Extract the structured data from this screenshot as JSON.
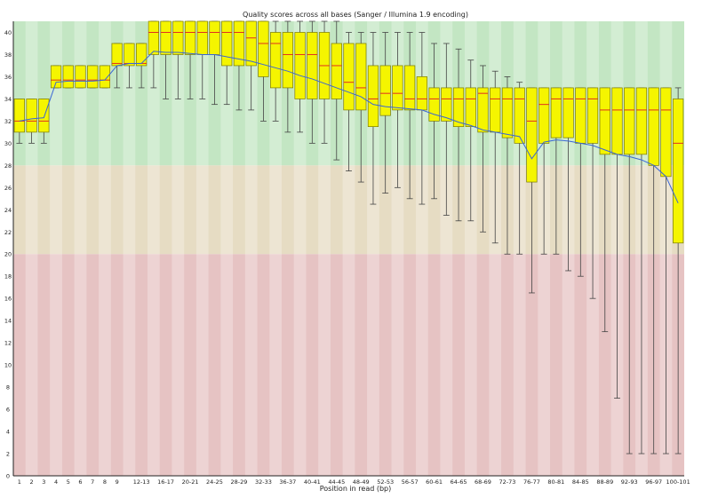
{
  "chart_data": {
    "type": "box",
    "title": "Quality scores across all bases (Sanger / Illumina 1.9 encoding)",
    "xlabel": "Position in read (bp)",
    "ylabel": "",
    "ylim": [
      0,
      41
    ],
    "y_ticks": [
      0,
      2,
      4,
      6,
      8,
      10,
      12,
      14,
      16,
      18,
      20,
      22,
      24,
      26,
      28,
      30,
      32,
      34,
      36,
      38,
      40
    ],
    "grid": false,
    "legend": "none",
    "bands": [
      {
        "from": 28,
        "to": 41,
        "color": "#c3e6c3"
      },
      {
        "from": 20,
        "to": 28,
        "color": "#e6dcc3"
      },
      {
        "from": 0,
        "to": 20,
        "color": "#e6c3c3"
      }
    ],
    "colors": {
      "box_fill": "#f5f500",
      "box_stroke": "#7a7a00",
      "median": "#e03020",
      "mean_line": "#3a66d6",
      "whisker": "#444444"
    },
    "categories": [
      "1",
      "2",
      "3",
      "4",
      "5",
      "6",
      "7",
      "8",
      "9",
      "10-11",
      "12-13",
      "14-15",
      "16-17",
      "18-19",
      "20-21",
      "22-23",
      "24-25",
      "26-27",
      "28-29",
      "30-31",
      "32-33",
      "34-35",
      "36-37",
      "38-39",
      "40-41",
      "42-43",
      "44-45",
      "46-47",
      "48-49",
      "50-51",
      "52-53",
      "54-55",
      "56-57",
      "58-59",
      "60-61",
      "62-63",
      "64-65",
      "66-67",
      "68-69",
      "70-71",
      "72-73",
      "74-75",
      "76-77",
      "78-79",
      "80-81",
      "82-83",
      "84-85",
      "86-87",
      "88-89",
      "90-91",
      "92-93",
      "94-95",
      "96-97",
      "98-99",
      "100-101"
    ],
    "x_tick_labels": [
      "1",
      "2",
      "3",
      "4",
      "5",
      "6",
      "7",
      "8",
      "9",
      "",
      "12-13",
      "",
      "16-17",
      "",
      "20-21",
      "",
      "24-25",
      "",
      "28-29",
      "",
      "32-33",
      "",
      "36-37",
      "",
      "40-41",
      "",
      "44-45",
      "",
      "48-49",
      "",
      "52-53",
      "",
      "56-57",
      "",
      "60-61",
      "",
      "64-65",
      "",
      "68-69",
      "",
      "72-73",
      "",
      "76-77",
      "",
      "80-81",
      "",
      "84-85",
      "",
      "88-89",
      "",
      "92-93",
      "",
      "96-97",
      "",
      "100-101"
    ],
    "boxes": [
      {
        "low": 30,
        "q1": 31,
        "median": 32,
        "q3": 34,
        "high": 34
      },
      {
        "low": 30,
        "q1": 31,
        "median": 32,
        "q3": 34,
        "high": 34
      },
      {
        "low": 30,
        "q1": 31,
        "median": 32,
        "q3": 34,
        "high": 34
      },
      {
        "low": 35,
        "q1": 35,
        "median": 35.7,
        "q3": 37,
        "high": 37
      },
      {
        "low": 35,
        "q1": 35,
        "median": 35.7,
        "q3": 37,
        "high": 37
      },
      {
        "low": 35,
        "q1": 35,
        "median": 35.7,
        "q3": 37,
        "high": 37
      },
      {
        "low": 35,
        "q1": 35,
        "median": 35.7,
        "q3": 37,
        "high": 37
      },
      {
        "low": 35,
        "q1": 35,
        "median": 35.7,
        "q3": 37,
        "high": 37
      },
      {
        "low": 35,
        "q1": 37,
        "median": 37.2,
        "q3": 39,
        "high": 39
      },
      {
        "low": 35,
        "q1": 37,
        "median": 37.2,
        "q3": 39,
        "high": 39
      },
      {
        "low": 35,
        "q1": 37,
        "median": 37.2,
        "q3": 39,
        "high": 39
      },
      {
        "low": 35,
        "q1": 38,
        "median": 40,
        "q3": 41,
        "high": 41
      },
      {
        "low": 34,
        "q1": 38,
        "median": 40,
        "q3": 41,
        "high": 41
      },
      {
        "low": 34,
        "q1": 38,
        "median": 40,
        "q3": 41,
        "high": 41
      },
      {
        "low": 34,
        "q1": 38,
        "median": 40,
        "q3": 41,
        "high": 41
      },
      {
        "low": 34,
        "q1": 38,
        "median": 40,
        "q3": 41,
        "high": 41
      },
      {
        "low": 33.5,
        "q1": 38,
        "median": 40,
        "q3": 41,
        "high": 41
      },
      {
        "low": 33.5,
        "q1": 37,
        "median": 40,
        "q3": 41,
        "high": 41
      },
      {
        "low": 33,
        "q1": 37,
        "median": 40,
        "q3": 41,
        "high": 41
      },
      {
        "low": 33,
        "q1": 37,
        "median": 39.5,
        "q3": 41,
        "high": 41
      },
      {
        "low": 32,
        "q1": 36,
        "median": 39,
        "q3": 41,
        "high": 41
      },
      {
        "low": 32,
        "q1": 35,
        "median": 39,
        "q3": 40,
        "high": 41
      },
      {
        "low": 31,
        "q1": 35,
        "median": 38,
        "q3": 40,
        "high": 41
      },
      {
        "low": 31,
        "q1": 34,
        "median": 38,
        "q3": 40,
        "high": 41
      },
      {
        "low": 30,
        "q1": 34,
        "median": 38,
        "q3": 40,
        "high": 41
      },
      {
        "low": 30,
        "q1": 34,
        "median": 37,
        "q3": 40,
        "high": 41
      },
      {
        "low": 28.5,
        "q1": 34,
        "median": 37,
        "q3": 39,
        "high": 41
      },
      {
        "low": 27.5,
        "q1": 33,
        "median": 35.5,
        "q3": 39,
        "high": 40
      },
      {
        "low": 26.5,
        "q1": 33,
        "median": 35,
        "q3": 39,
        "high": 40
      },
      {
        "low": 24.5,
        "q1": 31.5,
        "median": 34,
        "q3": 37,
        "high": 40
      },
      {
        "low": 25.5,
        "q1": 32.5,
        "median": 34.5,
        "q3": 37,
        "high": 40
      },
      {
        "low": 26,
        "q1": 33,
        "median": 34.5,
        "q3": 37,
        "high": 40
      },
      {
        "low": 25,
        "q1": 33,
        "median": 34,
        "q3": 37,
        "high": 40
      },
      {
        "low": 24.5,
        "q1": 33,
        "median": 34,
        "q3": 36,
        "high": 40
      },
      {
        "low": 25,
        "q1": 32,
        "median": 34,
        "q3": 35,
        "high": 39
      },
      {
        "low": 23.5,
        "q1": 32,
        "median": 34,
        "q3": 35,
        "high": 39
      },
      {
        "low": 23,
        "q1": 31.5,
        "median": 34,
        "q3": 35,
        "high": 38.5
      },
      {
        "low": 23,
        "q1": 31.5,
        "median": 34,
        "q3": 35,
        "high": 37.5
      },
      {
        "low": 22,
        "q1": 31,
        "median": 34.5,
        "q3": 35,
        "high": 37
      },
      {
        "low": 21,
        "q1": 31,
        "median": 34,
        "q3": 35,
        "high": 36.5
      },
      {
        "low": 20,
        "q1": 30.5,
        "median": 34,
        "q3": 35,
        "high": 36
      },
      {
        "low": 20,
        "q1": 30,
        "median": 34,
        "q3": 35,
        "high": 35.5
      },
      {
        "low": 16.5,
        "q1": 26.5,
        "median": 32,
        "q3": 35,
        "high": 35
      },
      {
        "low": 20,
        "q1": 30,
        "median": 33.5,
        "q3": 35,
        "high": 35
      },
      {
        "low": 20,
        "q1": 30.5,
        "median": 34,
        "q3": 35,
        "high": 35
      },
      {
        "low": 18.5,
        "q1": 30.5,
        "median": 34,
        "q3": 35,
        "high": 35
      },
      {
        "low": 18,
        "q1": 30,
        "median": 34,
        "q3": 35,
        "high": 35
      },
      {
        "low": 16,
        "q1": 30,
        "median": 34,
        "q3": 35,
        "high": 35
      },
      {
        "low": 13,
        "q1": 29,
        "median": 33,
        "q3": 35,
        "high": 35
      },
      {
        "low": 7,
        "q1": 29,
        "median": 33,
        "q3": 35,
        "high": 35
      },
      {
        "low": 2,
        "q1": 29,
        "median": 33,
        "q3": 35,
        "high": 35
      },
      {
        "low": 2,
        "q1": 29,
        "median": 33,
        "q3": 35,
        "high": 35
      },
      {
        "low": 2,
        "q1": 28,
        "median": 33,
        "q3": 35,
        "high": 35
      },
      {
        "low": 2,
        "q1": 27,
        "median": 33,
        "q3": 35,
        "high": 35
      },
      {
        "low": 2,
        "q1": 21,
        "median": 30,
        "q3": 34,
        "high": 35
      }
    ],
    "mean": [
      32,
      32.2,
      32.3,
      35.5,
      35.6,
      35.6,
      35.6,
      35.7,
      37.0,
      37.2,
      37.2,
      38.3,
      38.2,
      38.2,
      38.1,
      38.0,
      38.0,
      37.8,
      37.6,
      37.4,
      37.1,
      36.8,
      36.5,
      36.1,
      35.8,
      35.4,
      35.0,
      34.6,
      34.2,
      33.5,
      33.3,
      33.2,
      33.1,
      33.0,
      32.6,
      32.3,
      31.9,
      31.6,
      31.2,
      31.0,
      30.8,
      30.6,
      28.6,
      30.1,
      30.3,
      30.2,
      30.0,
      29.8,
      29.4,
      29.0,
      28.8,
      28.5,
      28.0,
      27.0,
      24.6
    ]
  }
}
